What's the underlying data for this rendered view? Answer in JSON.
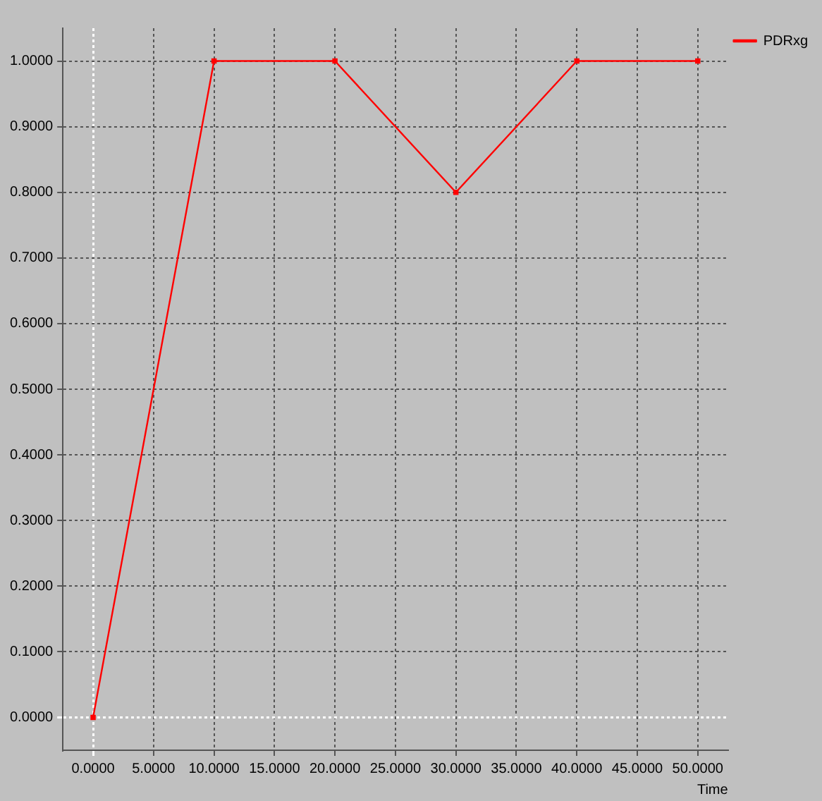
{
  "chart_data": {
    "type": "line",
    "xlabel": "Time",
    "x": [
      0,
      10,
      20,
      30,
      40,
      50
    ],
    "series": [
      {
        "name": "PDRxg",
        "color": "#ff0000",
        "values": [
          0,
          1,
          1,
          0.8,
          1,
          1
        ]
      }
    ],
    "xlim": [
      -2.5,
      52.5
    ],
    "xticks": [
      {
        "value": 0,
        "label": "0.0000"
      },
      {
        "value": 5,
        "label": "5.0000"
      },
      {
        "value": 10,
        "label": "10.0000"
      },
      {
        "value": 15,
        "label": "15.0000"
      },
      {
        "value": 20,
        "label": "20.0000"
      },
      {
        "value": 25,
        "label": "25.0000"
      },
      {
        "value": 30,
        "label": "30.0000"
      },
      {
        "value": 35,
        "label": "35.0000"
      },
      {
        "value": 40,
        "label": "40.0000"
      },
      {
        "value": 45,
        "label": "45.0000"
      },
      {
        "value": 50,
        "label": "50.0000"
      }
    ],
    "ylim": [
      -0.05,
      1.05
    ],
    "yticks": [
      {
        "value": 0,
        "label": "0.0000"
      },
      {
        "value": 0.1,
        "label": "0.1000"
      },
      {
        "value": 0.2,
        "label": "0.2000"
      },
      {
        "value": 0.3,
        "label": "0.3000"
      },
      {
        "value": 0.4,
        "label": "0.4000"
      },
      {
        "value": 0.5,
        "label": "0.5000"
      },
      {
        "value": 0.6,
        "label": "0.6000"
      },
      {
        "value": 0.7,
        "label": "0.7000"
      },
      {
        "value": 0.8,
        "label": "0.8000"
      },
      {
        "value": 0.9,
        "label": "0.9000"
      },
      {
        "value": 1,
        "label": "1.0000"
      }
    ],
    "grid": true,
    "legend": "top right",
    "marker": "square",
    "line_style": "solid"
  }
}
